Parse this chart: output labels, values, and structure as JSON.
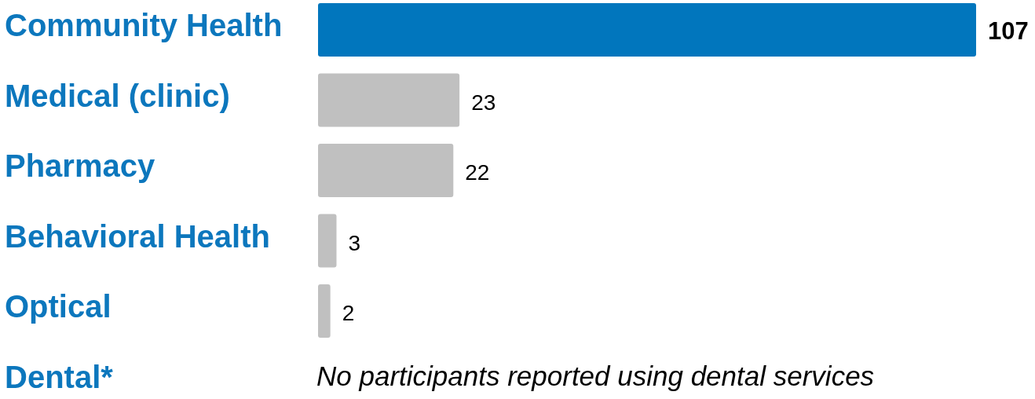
{
  "chart_data": {
    "type": "bar",
    "orientation": "horizontal",
    "categories": [
      "Community Health",
      "Medical (clinic)",
      "Pharmacy",
      "Behavioral Health",
      "Optical",
      "Dental*"
    ],
    "values": [
      107,
      23,
      22,
      3,
      2,
      null
    ],
    "colors": [
      "#0176bd",
      "#c0c0c0",
      "#c0c0c0",
      "#c0c0c0",
      "#c0c0c0",
      null
    ],
    "data_labels": true,
    "annotations": [
      "No participants reported using dental services"
    ]
  }
}
